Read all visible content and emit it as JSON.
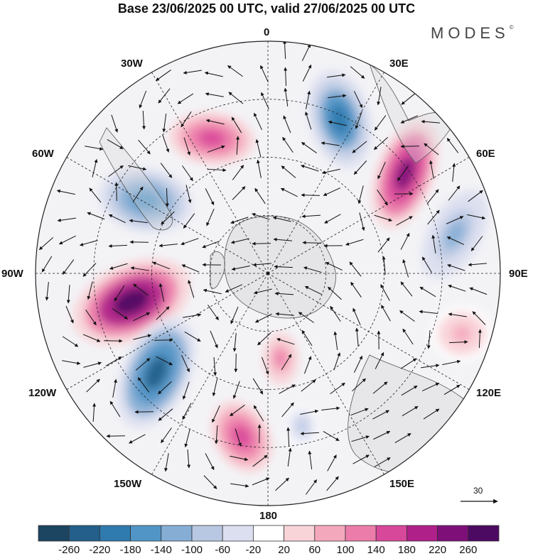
{
  "title": "Base 23/06/2025 00 UTC, valid 27/06/2025 00 UTC",
  "brand": "MODES",
  "brand_mark": "©",
  "map": {
    "projection": "south polar stereographic",
    "longitude_labels": [
      {
        "id": "lon-0",
        "text": "0"
      },
      {
        "id": "lon-30e",
        "text": "30E"
      },
      {
        "id": "lon-60e",
        "text": "60E"
      },
      {
        "id": "lon-90e",
        "text": "90E"
      },
      {
        "id": "lon-120e",
        "text": "120E"
      },
      {
        "id": "lon-150e",
        "text": "150E"
      },
      {
        "id": "lon-180",
        "text": "180"
      },
      {
        "id": "lon-150w",
        "text": "150W"
      },
      {
        "id": "lon-120w",
        "text": "120W"
      },
      {
        "id": "lon-90w",
        "text": "90W"
      },
      {
        "id": "lon-60w",
        "text": "60W"
      },
      {
        "id": "lon-30w",
        "text": "30W"
      }
    ],
    "reference_vector": {
      "label": "30",
      "icon": "arrow-right-icon"
    }
  },
  "colorbar": {
    "tick_labels": [
      "-260",
      "-220",
      "-180",
      "-140",
      "-100",
      "-60",
      "-20",
      "20",
      "60",
      "100",
      "140",
      "180",
      "220",
      "260"
    ],
    "colors": [
      "#1c4562",
      "#235f8a",
      "#2f7aae",
      "#5195c6",
      "#86aed5",
      "#b8c8e2",
      "#dcdff0",
      "#ffffff",
      "#f8d4d8",
      "#f4a8bc",
      "#ec7caa",
      "#d8489a",
      "#b02089",
      "#7e0f79",
      "#4d0a62"
    ]
  },
  "chart_data": {
    "type": "heatmap",
    "title": "Base 23/06/2025 00 UTC, valid 27/06/2025 00 UTC",
    "levels": [
      -260,
      -220,
      -180,
      -140,
      -100,
      -60,
      -20,
      20,
      60,
      100,
      140,
      180,
      220,
      260
    ],
    "anomaly_centers": [
      {
        "lon_label": "30E",
        "sign": "negative",
        "magnitude": 220
      },
      {
        "lon_label": "60E",
        "sign": "positive",
        "magnitude": 240
      },
      {
        "lon_label": "90E",
        "sign": "negative",
        "magnitude": 120
      },
      {
        "lon_label": "90W",
        "sign": "positive",
        "magnitude": 270
      },
      {
        "lon_label": "60W",
        "sign": "negative",
        "magnitude": 160
      },
      {
        "lon_label": "30W",
        "sign": "positive",
        "magnitude": 160
      },
      {
        "lon_label": "120W",
        "sign": "negative",
        "magnitude": 250
      },
      {
        "lon_label": "150W",
        "sign": "positive",
        "magnitude": 160
      },
      {
        "lon_label": "180",
        "sign": "positive",
        "magnitude": 120
      },
      {
        "lon_label": "150E",
        "sign": "negative",
        "magnitude": 80
      },
      {
        "lon_label": "120E",
        "sign": "positive",
        "magnitude": 60
      }
    ]
  }
}
